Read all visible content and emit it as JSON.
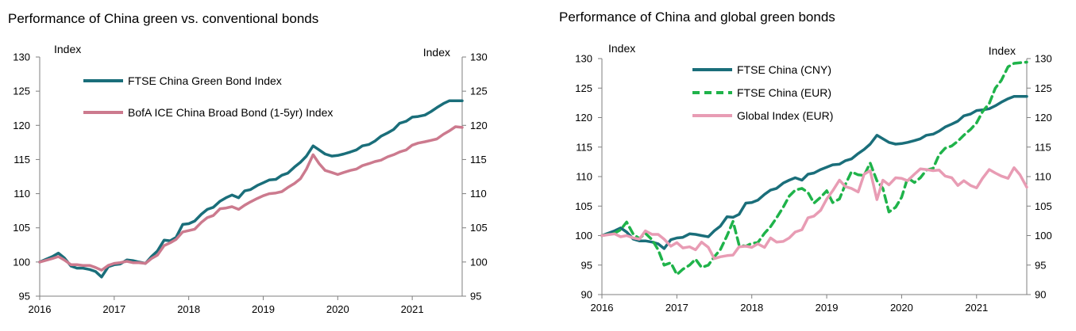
{
  "titles": {
    "left": "Performance of China green vs. conventional bonds",
    "right": "Performance of China and global green bonds"
  },
  "chart_data": [
    {
      "type": "line",
      "title": "Performance of China green vs. conventional bonds",
      "ylabel_left": "Index",
      "ylabel_right": "Index",
      "xlim": [
        2016,
        2021.67
      ],
      "ylim": [
        95,
        130
      ],
      "yticks": [
        95,
        100,
        105,
        110,
        115,
        120,
        125,
        130
      ],
      "xticks": [
        "2016",
        "2017",
        "2018",
        "2019",
        "2020",
        "2021"
      ],
      "grid": false,
      "legend_position": "top-left",
      "series": [
        {
          "name": "FTSE China Green Bond Index",
          "color": "#1a6e7a",
          "style": "solid",
          "x": [
            2016,
            2016.17,
            2016.25,
            2016.33,
            2016.42,
            2016.5,
            2016.58,
            2016.67,
            2016.75,
            2016.83,
            2016.92,
            2017,
            2017.08,
            2017.17,
            2017.25,
            2017.33,
            2017.42,
            2017.5,
            2017.58,
            2017.67,
            2017.75,
            2017.83,
            2017.92,
            2018,
            2018.08,
            2018.17,
            2018.25,
            2018.33,
            2018.42,
            2018.5,
            2018.58,
            2018.67,
            2018.75,
            2018.83,
            2018.92,
            2019,
            2019.08,
            2019.17,
            2019.25,
            2019.33,
            2019.42,
            2019.5,
            2019.58,
            2019.67,
            2019.75,
            2019.83,
            2019.92,
            2020,
            2020.08,
            2020.17,
            2020.25,
            2020.33,
            2020.42,
            2020.5,
            2020.58,
            2020.67,
            2020.75,
            2020.83,
            2020.92,
            2021,
            2021.08,
            2021.17,
            2021.25,
            2021.33,
            2021.42,
            2021.5,
            2021.58,
            2021.67
          ],
          "values": [
            100,
            100.8,
            101.3,
            100.6,
            99.4,
            99.1,
            99.1,
            98.9,
            98.6,
            97.8,
            99.3,
            99.6,
            99.7,
            100.3,
            100.2,
            100.0,
            99.8,
            100.8,
            101.6,
            103.2,
            103.1,
            103.6,
            105.5,
            105.6,
            106.0,
            107.0,
            107.7,
            108.0,
            108.9,
            109.4,
            109.8,
            109.4,
            110.4,
            110.6,
            111.2,
            111.6,
            112.0,
            112.1,
            112.7,
            113.0,
            113.9,
            114.6,
            115.5,
            117.0,
            116.4,
            115.8,
            115.5,
            115.6,
            115.8,
            116.1,
            116.4,
            117.0,
            117.2,
            117.7,
            118.4,
            118.9,
            119.4,
            120.3,
            120.6,
            121.2,
            121.3,
            121.5,
            122.0,
            122.6,
            123.2,
            123.6,
            123.6,
            123.6
          ]
        },
        {
          "name": "BofA ICE China Broad Bond (1-5yr) Index",
          "color": "#cc7a8e",
          "style": "solid",
          "x": [
            2016,
            2016.17,
            2016.25,
            2016.33,
            2016.42,
            2016.5,
            2016.58,
            2016.67,
            2016.75,
            2016.83,
            2016.92,
            2017,
            2017.08,
            2017.17,
            2017.25,
            2017.33,
            2017.42,
            2017.5,
            2017.58,
            2017.67,
            2017.75,
            2017.83,
            2017.92,
            2018,
            2018.08,
            2018.17,
            2018.25,
            2018.33,
            2018.42,
            2018.5,
            2018.58,
            2018.67,
            2018.75,
            2018.83,
            2018.92,
            2019,
            2019.08,
            2019.17,
            2019.25,
            2019.33,
            2019.42,
            2019.5,
            2019.58,
            2019.67,
            2019.75,
            2019.83,
            2019.92,
            2020,
            2020.08,
            2020.17,
            2020.25,
            2020.33,
            2020.42,
            2020.5,
            2020.58,
            2020.67,
            2020.75,
            2020.83,
            2020.92,
            2021,
            2021.08,
            2021.17,
            2021.25,
            2021.33,
            2021.42,
            2021.5,
            2021.58,
            2021.67
          ],
          "values": [
            100,
            100.5,
            100.8,
            100.3,
            99.6,
            99.6,
            99.5,
            99.5,
            99.2,
            98.8,
            99.5,
            99.8,
            99.9,
            100.1,
            99.9,
            99.9,
            99.8,
            100.5,
            101.0,
            102.4,
            102.8,
            103.3,
            104.4,
            104.6,
            104.8,
            105.8,
            106.5,
            106.8,
            107.8,
            107.9,
            108.1,
            107.7,
            108.3,
            108.8,
            109.3,
            109.7,
            110.0,
            110.1,
            110.3,
            110.9,
            111.5,
            112.2,
            113.6,
            115.7,
            114.4,
            113.4,
            113.1,
            112.8,
            113.1,
            113.4,
            113.6,
            114.1,
            114.4,
            114.7,
            114.9,
            115.4,
            115.7,
            116.1,
            116.4,
            117.1,
            117.4,
            117.6,
            117.8,
            118.0,
            118.7,
            119.2,
            119.8,
            119.7
          ]
        }
      ]
    },
    {
      "type": "line",
      "title": "Performance of China and global green bonds",
      "ylabel_left": "Index",
      "ylabel_right": "Index",
      "xlim": [
        2016,
        2021.67
      ],
      "ylim": [
        90,
        130
      ],
      "yticks": [
        90,
        95,
        100,
        105,
        110,
        115,
        120,
        125,
        130
      ],
      "xticks": [
        "2016",
        "2017",
        "2018",
        "2019",
        "2020",
        "2021"
      ],
      "grid": false,
      "legend_position": "top-left",
      "series": [
        {
          "name": "FTSE China (CNY)",
          "color": "#1a6e7a",
          "style": "solid",
          "x": [
            2016,
            2016.17,
            2016.25,
            2016.33,
            2016.42,
            2016.5,
            2016.58,
            2016.67,
            2016.75,
            2016.83,
            2016.92,
            2017,
            2017.08,
            2017.17,
            2017.25,
            2017.33,
            2017.42,
            2017.5,
            2017.58,
            2017.67,
            2017.75,
            2017.83,
            2017.92,
            2018,
            2018.08,
            2018.17,
            2018.25,
            2018.33,
            2018.42,
            2018.5,
            2018.58,
            2018.67,
            2018.75,
            2018.83,
            2018.92,
            2019,
            2019.08,
            2019.17,
            2019.25,
            2019.33,
            2019.42,
            2019.5,
            2019.58,
            2019.67,
            2019.75,
            2019.83,
            2019.92,
            2020,
            2020.08,
            2020.17,
            2020.25,
            2020.33,
            2020.42,
            2020.5,
            2020.58,
            2020.67,
            2020.75,
            2020.83,
            2020.92,
            2021,
            2021.08,
            2021.17,
            2021.25,
            2021.33,
            2021.42,
            2021.5,
            2021.58,
            2021.67
          ],
          "values": [
            100,
            100.8,
            101.3,
            100.6,
            99.4,
            99.1,
            99.1,
            98.9,
            98.6,
            97.8,
            99.3,
            99.6,
            99.7,
            100.3,
            100.2,
            100.0,
            99.8,
            100.8,
            101.6,
            103.2,
            103.1,
            103.6,
            105.5,
            105.6,
            106.0,
            107.0,
            107.7,
            108.0,
            108.9,
            109.4,
            109.8,
            109.4,
            110.4,
            110.6,
            111.2,
            111.6,
            112.0,
            112.1,
            112.7,
            113.0,
            113.9,
            114.6,
            115.5,
            117.0,
            116.4,
            115.8,
            115.5,
            115.6,
            115.8,
            116.1,
            116.4,
            117.0,
            117.2,
            117.7,
            118.4,
            118.9,
            119.4,
            120.3,
            120.6,
            121.2,
            121.3,
            121.5,
            122.0,
            122.6,
            123.2,
            123.6,
            123.6,
            123.6
          ]
        },
        {
          "name": "FTSE China (EUR)",
          "color": "#1fb34a",
          "style": "dashed",
          "x": [
            2016,
            2016.17,
            2016.25,
            2016.33,
            2016.42,
            2016.5,
            2016.58,
            2016.67,
            2016.75,
            2016.83,
            2016.92,
            2017,
            2017.08,
            2017.17,
            2017.25,
            2017.33,
            2017.42,
            2017.5,
            2017.58,
            2017.67,
            2017.75,
            2017.83,
            2017.92,
            2018,
            2018.08,
            2018.17,
            2018.25,
            2018.33,
            2018.42,
            2018.5,
            2018.58,
            2018.67,
            2018.75,
            2018.83,
            2018.92,
            2019,
            2019.08,
            2019.17,
            2019.25,
            2019.33,
            2019.42,
            2019.5,
            2019.58,
            2019.67,
            2019.75,
            2019.83,
            2019.92,
            2020,
            2020.08,
            2020.17,
            2020.25,
            2020.33,
            2020.42,
            2020.5,
            2020.58,
            2020.67,
            2020.75,
            2020.83,
            2020.92,
            2021,
            2021.08,
            2021.17,
            2021.25,
            2021.33,
            2021.42,
            2021.5,
            2021.58,
            2021.67
          ],
          "values": [
            100,
            100.4,
            101.0,
            102.3,
            100.2,
            99.5,
            100.4,
            99.3,
            97.6,
            95.0,
            95.4,
            93.4,
            94.3,
            95.0,
            96.0,
            94.6,
            95.0,
            96.4,
            97.6,
            100.0,
            102.4,
            98.4,
            98.2,
            98.7,
            98.8,
            100.4,
            101.5,
            103.0,
            104.8,
            106.7,
            107.7,
            108.0,
            107.3,
            105.5,
            106.5,
            107.6,
            105.6,
            106.2,
            108.7,
            110.8,
            110.3,
            110.2,
            112.3,
            109.3,
            108.0,
            104.0,
            104.8,
            106.5,
            109.8,
            109.0,
            109.8,
            111.1,
            111.4,
            113.7,
            114.8,
            115.2,
            116.0,
            117.0,
            118.0,
            119.1,
            121.0,
            122.4,
            125.0,
            126.3,
            128.6,
            129.2,
            129.3,
            129.4
          ]
        },
        {
          "name": "Global Index (EUR)",
          "color": "#e89cb4",
          "style": "solid",
          "x": [
            2016,
            2016.17,
            2016.25,
            2016.33,
            2016.42,
            2016.5,
            2016.58,
            2016.67,
            2016.75,
            2016.83,
            2016.92,
            2017,
            2017.08,
            2017.17,
            2017.25,
            2017.33,
            2017.42,
            2017.5,
            2017.58,
            2017.67,
            2017.75,
            2017.83,
            2017.92,
            2018,
            2018.08,
            2018.17,
            2018.25,
            2018.33,
            2018.42,
            2018.5,
            2018.58,
            2018.67,
            2018.75,
            2018.83,
            2018.92,
            2019,
            2019.08,
            2019.17,
            2019.25,
            2019.33,
            2019.42,
            2019.5,
            2019.58,
            2019.67,
            2019.75,
            2019.83,
            2019.92,
            2020,
            2020.08,
            2020.17,
            2020.25,
            2020.33,
            2020.42,
            2020.5,
            2020.58,
            2020.67,
            2020.75,
            2020.83,
            2020.92,
            2021,
            2021.08,
            2021.17,
            2021.25,
            2021.33,
            2021.42,
            2021.5,
            2021.58,
            2021.67
          ],
          "values": [
            100,
            100.3,
            99.8,
            100.0,
            99.6,
            99.4,
            100.8,
            100.2,
            100.2,
            99.4,
            98.2,
            98.8,
            97.9,
            98.1,
            97.6,
            98.9,
            98.0,
            96.1,
            96.4,
            96.6,
            96.7,
            98.1,
            98.2,
            98.0,
            98.6,
            98.0,
            99.6,
            98.9,
            99.0,
            99.6,
            100.6,
            101.0,
            103.0,
            103.3,
            104.3,
            106.2,
            107.6,
            109.4,
            108.3,
            108.0,
            107.4,
            110.4,
            111.0,
            106.1,
            109.4,
            108.6,
            109.8,
            109.7,
            109.3,
            110.4,
            111.3,
            111.2,
            111.0,
            111.1,
            110.1,
            109.8,
            108.5,
            109.3,
            108.5,
            108.1,
            109.7,
            111.2,
            110.6,
            110.1,
            109.7,
            111.5,
            110.3,
            108.2
          ]
        }
      ]
    }
  ]
}
